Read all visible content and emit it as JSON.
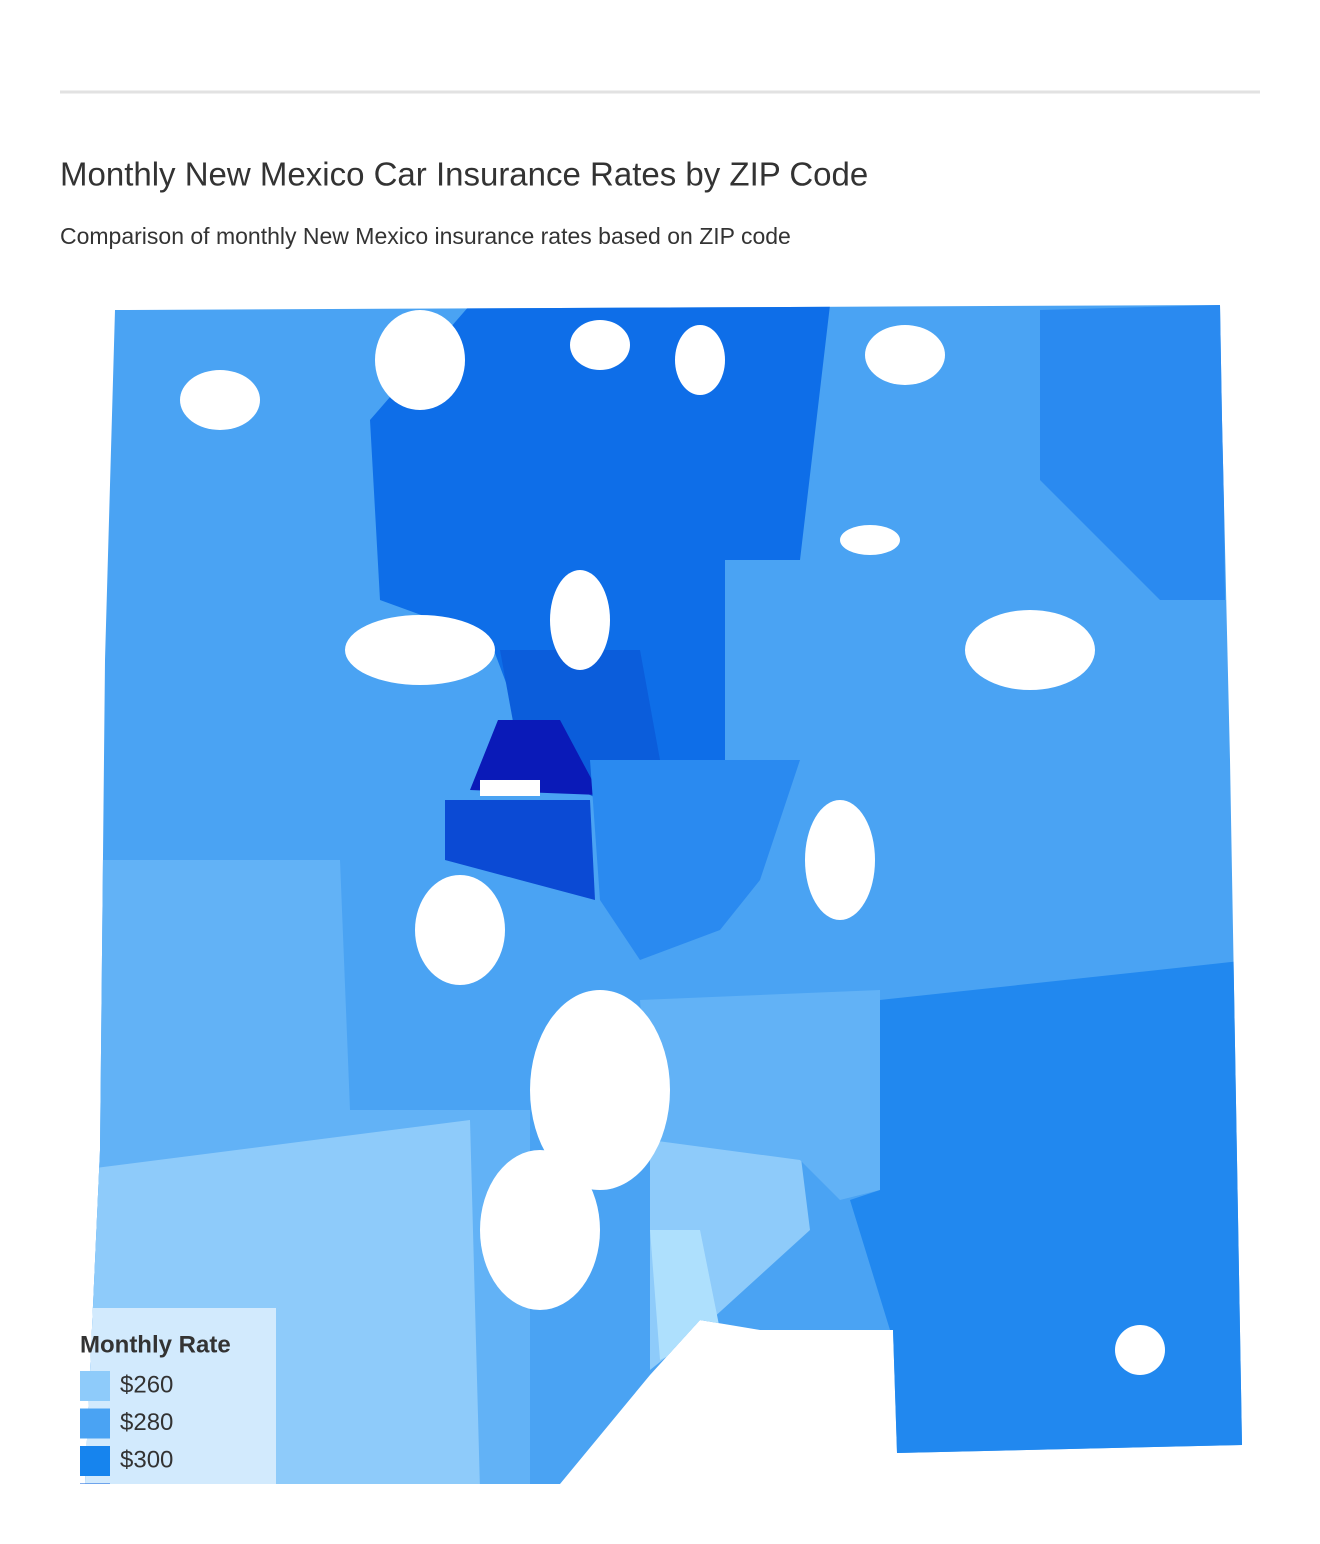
{
  "chart_data": {
    "type": "choropleth",
    "title": "Monthly New Mexico Car Insurance Rates by ZIP Code",
    "subtitle": "Comparison of monthly New Mexico insurance rates based on ZIP code",
    "legend_title": "Monthly Rate",
    "legend": [
      {
        "value": 260,
        "label": "$260",
        "color": "#8ecbfa"
      },
      {
        "value": 280,
        "label": "$280",
        "color": "#4aa3f3"
      },
      {
        "value": 300,
        "label": "$300",
        "color": "#1684ee"
      },
      {
        "color": "#0b5ddb"
      }
    ]
  }
}
